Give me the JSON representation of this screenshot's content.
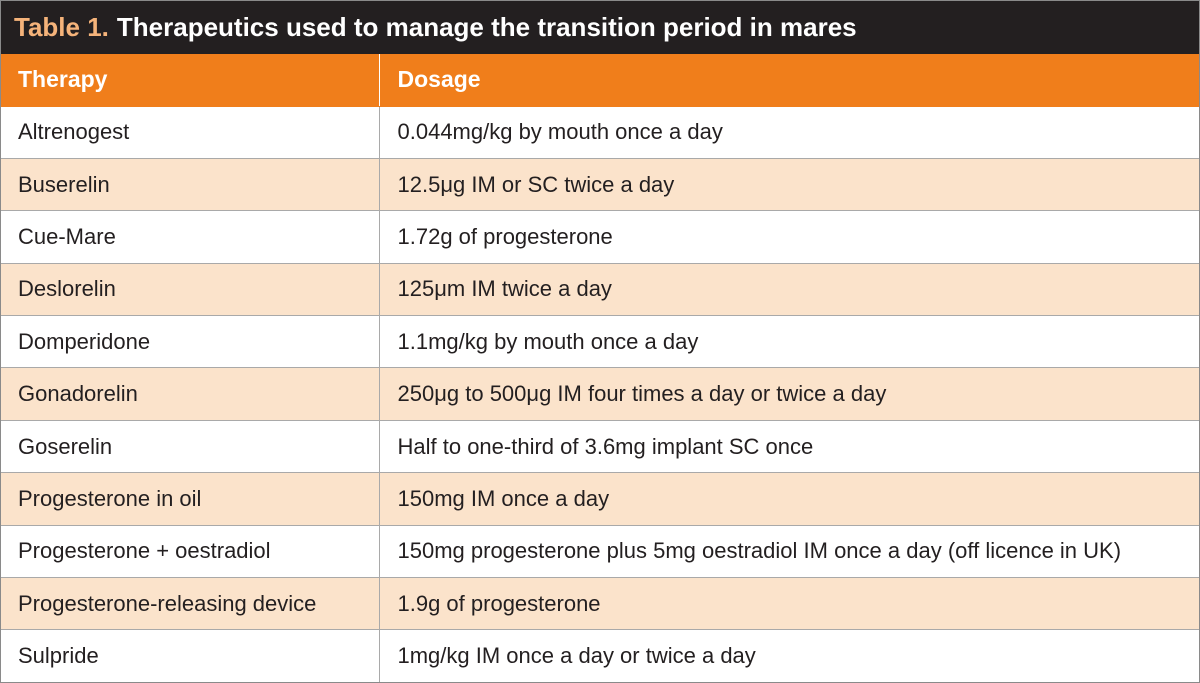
{
  "table": {
    "title_number": "Table 1.",
    "title_text": "Therapeutics used to manage the transition period in mares",
    "headers": [
      "Therapy",
      "Dosage"
    ],
    "rows": [
      [
        "Altrenogest",
        "0.044mg/kg by mouth once a day"
      ],
      [
        "Buserelin",
        "12.5μg IM or SC twice a day"
      ],
      [
        "Cue-Mare",
        "1.72g of progesterone"
      ],
      [
        "Deslorelin",
        "125μm IM twice a day"
      ],
      [
        "Domperidone",
        "1.1mg/kg by mouth once a day"
      ],
      [
        "Gonadorelin",
        "250μg to 500μg IM four times a day or twice a day"
      ],
      [
        "Goserelin",
        "Half to one-third of 3.6mg implant SC once"
      ],
      [
        "Progesterone in oil",
        "150mg IM once a day"
      ],
      [
        "Progesterone + oestradiol",
        "150mg progesterone plus 5mg oestradiol IM once a day (off licence in UK)"
      ],
      [
        "Progesterone-releasing device",
        "1.9g of progesterone"
      ],
      [
        "Sulpride",
        "1mg/kg IM once a day or twice a day"
      ]
    ]
  },
  "colors": {
    "title_bar": "#231f20",
    "title_number": "#f5b37a",
    "header_bg": "#f07e1b",
    "row_alt": "#fbe3cb"
  }
}
